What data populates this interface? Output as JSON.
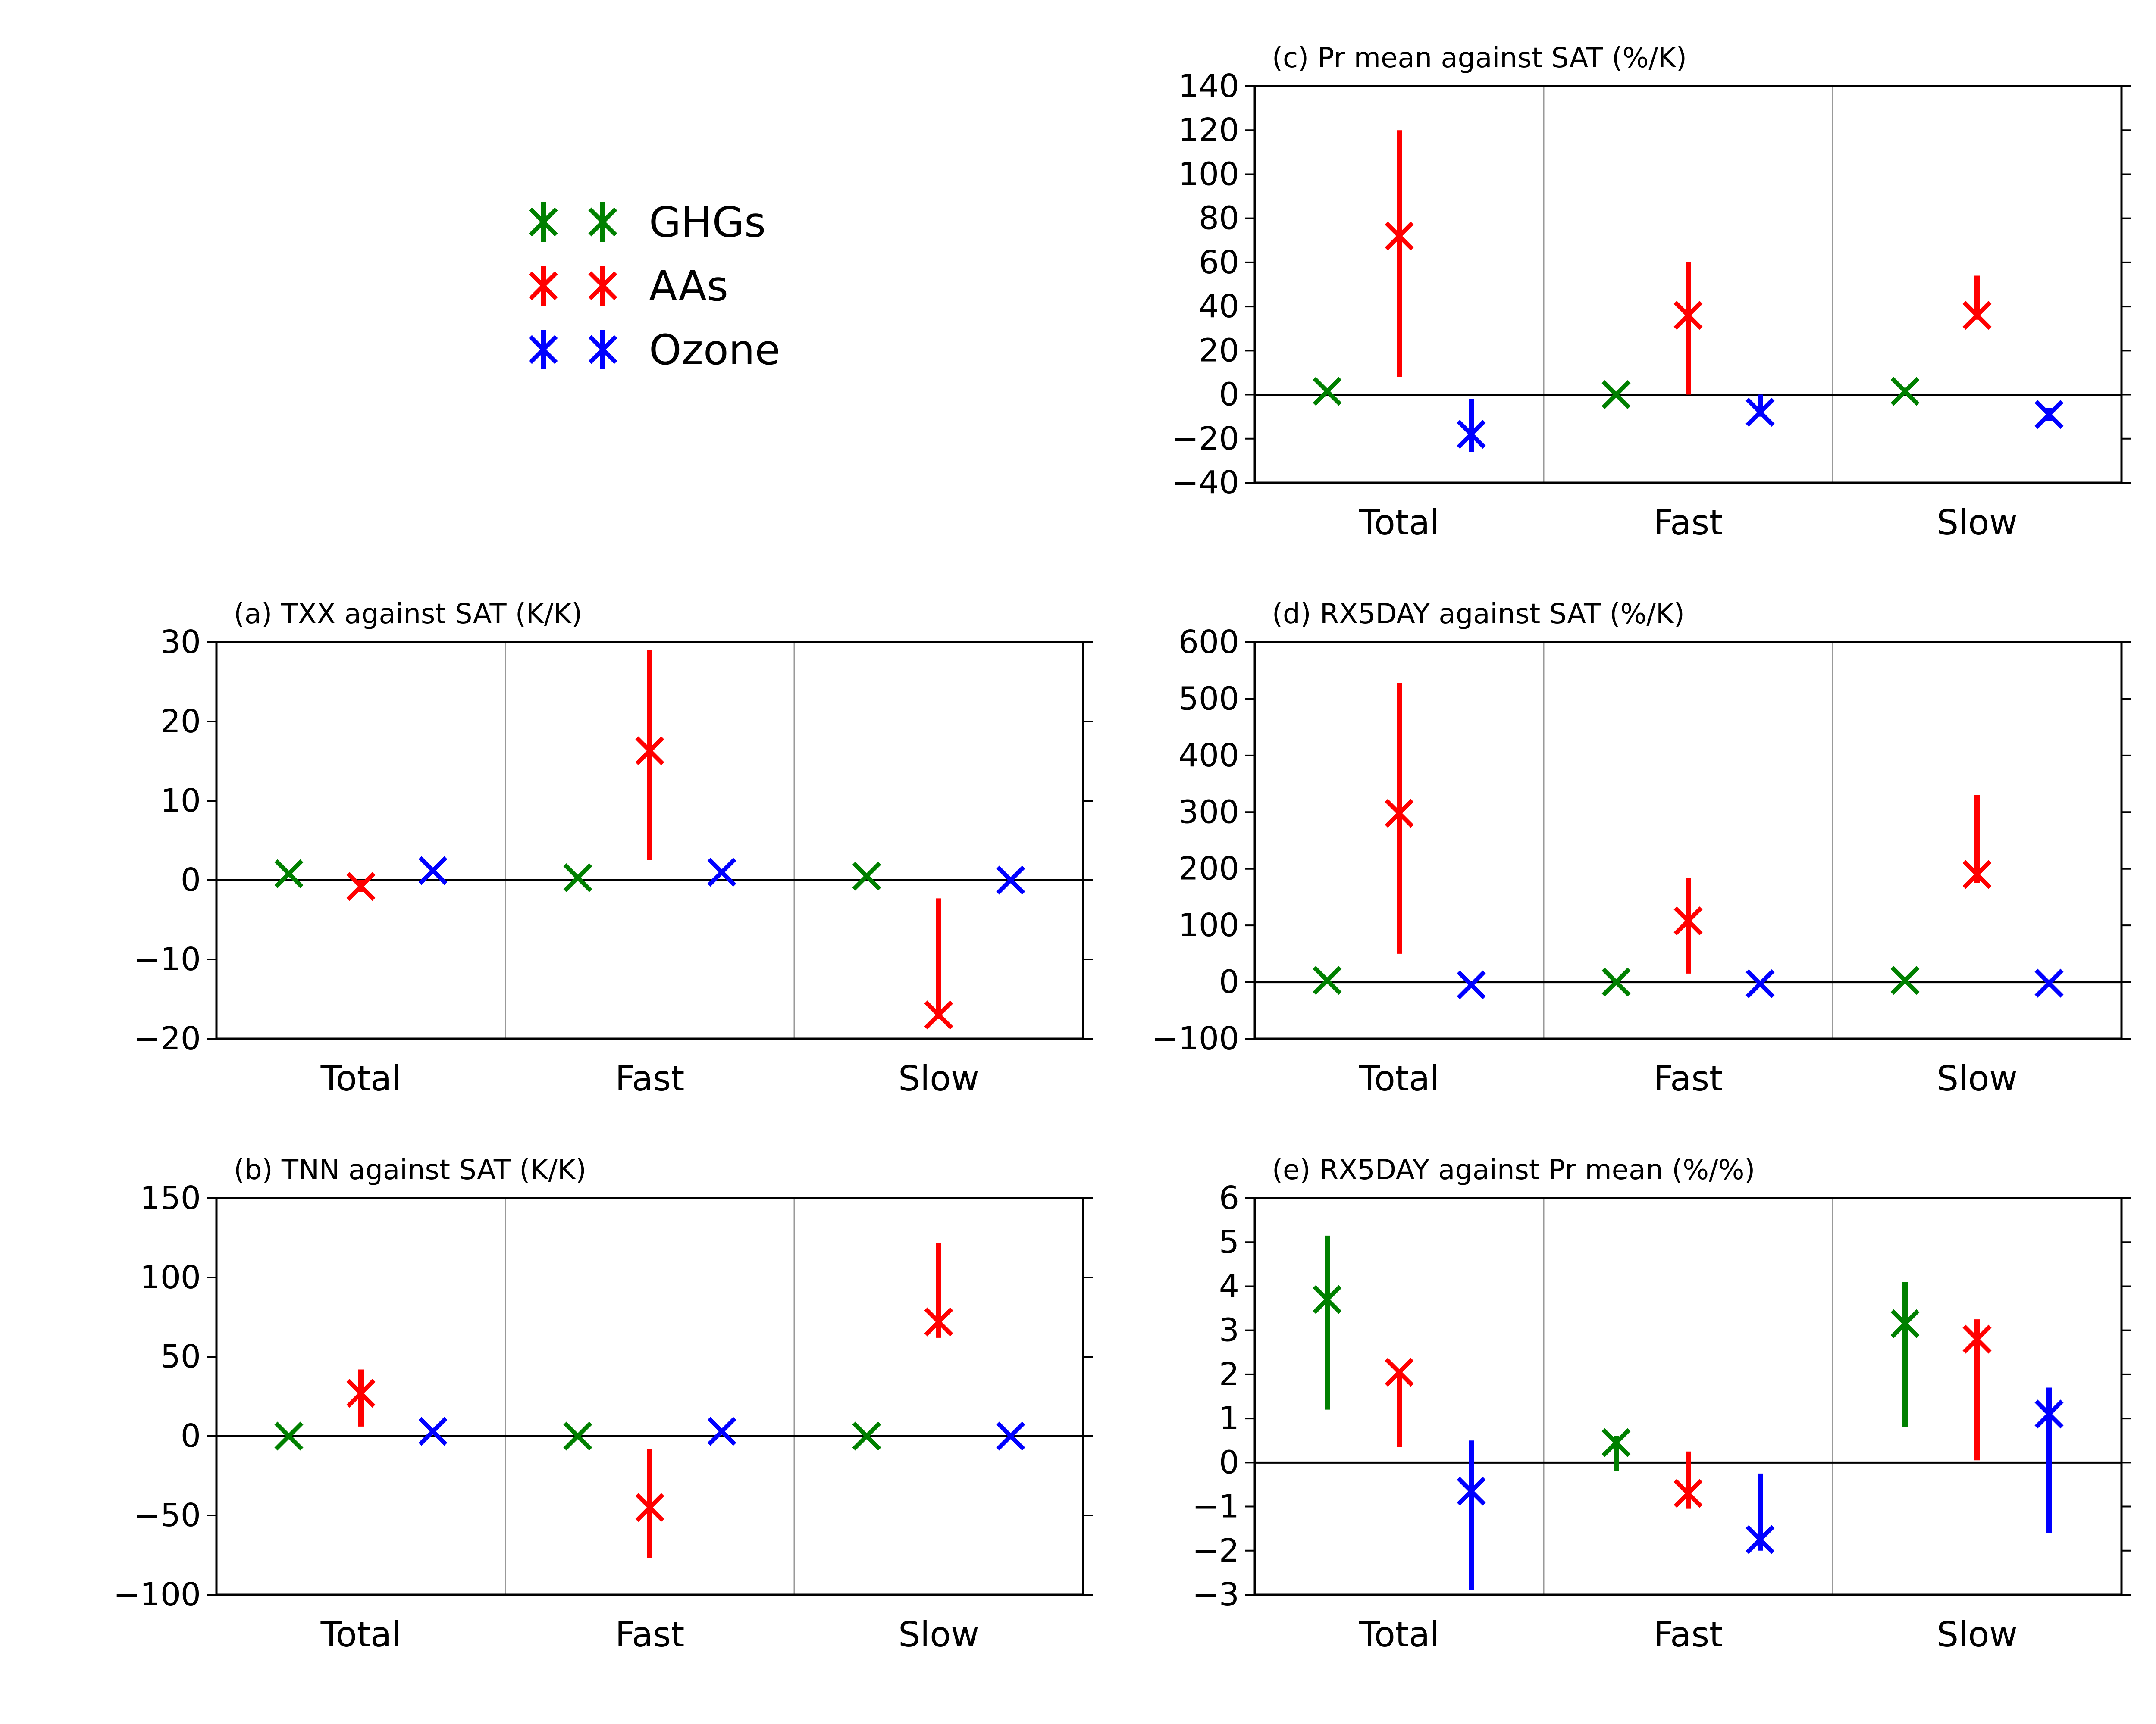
{
  "legend": {
    "entries": [
      {
        "label": "GHGs",
        "color": "#008000"
      },
      {
        "label": "AAs",
        "color": "#ff0000"
      },
      {
        "label": "Ozone",
        "color": "#0000ff"
      }
    ]
  },
  "chart_data": [
    {
      "id": "c",
      "type": "errorbar",
      "title": "(c) Pr mean against SAT (%/K)",
      "categories": [
        "Total",
        "Fast",
        "Slow"
      ],
      "ylim": [
        -40,
        140
      ],
      "yticks": [
        -40,
        -20,
        0,
        20,
        40,
        60,
        80,
        100,
        120,
        140
      ],
      "series": [
        {
          "name": "GHGs",
          "values": [
            1.5,
            0,
            1.5
          ],
          "low": [
            1.5,
            0,
            1.5
          ],
          "high": [
            1.5,
            0,
            1.5
          ]
        },
        {
          "name": "AAs",
          "values": [
            72,
            36,
            36
          ],
          "low": [
            8,
            0,
            34
          ],
          "high": [
            120,
            60,
            54
          ]
        },
        {
          "name": "Ozone",
          "values": [
            -18,
            -8,
            -9
          ],
          "low": [
            -26,
            -10,
            -12
          ],
          "high": [
            -2,
            0,
            -6
          ]
        }
      ]
    },
    {
      "id": "a",
      "type": "errorbar",
      "title": "(a) TXX against SAT (K/K)",
      "categories": [
        "Total",
        "Fast",
        "Slow"
      ],
      "ylim": [
        -20,
        30
      ],
      "yticks": [
        -20,
        -10,
        0,
        10,
        20,
        30
      ],
      "series": [
        {
          "name": "GHGs",
          "values": [
            0.8,
            0.3,
            0.5
          ],
          "low": [
            0.8,
            0.3,
            0.5
          ],
          "high": [
            0.8,
            0.3,
            0.5
          ]
        },
        {
          "name": "AAs",
          "values": [
            -0.8,
            16.3,
            -17
          ],
          "low": [
            -1.5,
            2.5,
            -17.5
          ],
          "high": [
            0,
            29,
            -2.3
          ]
        },
        {
          "name": "Ozone",
          "values": [
            1.2,
            1.0,
            0
          ],
          "low": [
            1.2,
            1.0,
            0
          ],
          "high": [
            1.2,
            1.0,
            0
          ]
        }
      ]
    },
    {
      "id": "d",
      "type": "errorbar",
      "title": "(d) RX5DAY against SAT (%/K)",
      "categories": [
        "Total",
        "Fast",
        "Slow"
      ],
      "ylim": [
        -100,
        600
      ],
      "yticks": [
        -100,
        0,
        100,
        200,
        300,
        400,
        500,
        600
      ],
      "series": [
        {
          "name": "GHGs",
          "values": [
            3,
            0,
            3
          ],
          "low": [
            3,
            0,
            3
          ],
          "high": [
            3,
            0,
            3
          ]
        },
        {
          "name": "AAs",
          "values": [
            298,
            108,
            190
          ],
          "low": [
            50,
            15,
            175
          ],
          "high": [
            528,
            183,
            330
          ]
        },
        {
          "name": "Ozone",
          "values": [
            -5,
            -3,
            -2
          ],
          "low": [
            -5,
            -3,
            -2
          ],
          "high": [
            -5,
            -3,
            -2
          ]
        }
      ]
    },
    {
      "id": "b",
      "type": "errorbar",
      "title": "(b) TNN against SAT (K/K)",
      "categories": [
        "Total",
        "Fast",
        "Slow"
      ],
      "ylim": [
        -100,
        150
      ],
      "yticks": [
        -100,
        -50,
        0,
        50,
        100,
        150
      ],
      "series": [
        {
          "name": "GHGs",
          "values": [
            0,
            0,
            0
          ],
          "low": [
            0,
            0,
            0
          ],
          "high": [
            0,
            0,
            0
          ]
        },
        {
          "name": "AAs",
          "values": [
            27,
            -45,
            72
          ],
          "low": [
            6,
            -77,
            62
          ],
          "high": [
            42,
            -8,
            122
          ]
        },
        {
          "name": "Ozone",
          "values": [
            3,
            3,
            0
          ],
          "low": [
            3,
            3,
            0
          ],
          "high": [
            3,
            3,
            0
          ]
        }
      ]
    },
    {
      "id": "e",
      "type": "errorbar",
      "title": "(e) RX5DAY against Pr mean (%/%)",
      "categories": [
        "Total",
        "Fast",
        "Slow"
      ],
      "ylim": [
        -3,
        6
      ],
      "yticks": [
        -3,
        -2,
        -1,
        0,
        1,
        2,
        3,
        4,
        5,
        6
      ],
      "series": [
        {
          "name": "GHGs",
          "values": [
            3.7,
            0.45,
            3.15
          ],
          "low": [
            1.2,
            -0.2,
            0.8
          ],
          "high": [
            5.15,
            0.6,
            4.1
          ]
        },
        {
          "name": "AAs",
          "values": [
            2.05,
            -0.7,
            2.8
          ],
          "low": [
            0.35,
            -1.05,
            0.05
          ],
          "high": [
            2.05,
            0.25,
            3.25
          ]
        },
        {
          "name": "Ozone",
          "values": [
            -0.65,
            -1.75,
            1.1
          ],
          "low": [
            -2.9,
            -2.0,
            -1.6
          ],
          "high": [
            0.5,
            -0.25,
            1.7
          ]
        }
      ]
    }
  ]
}
